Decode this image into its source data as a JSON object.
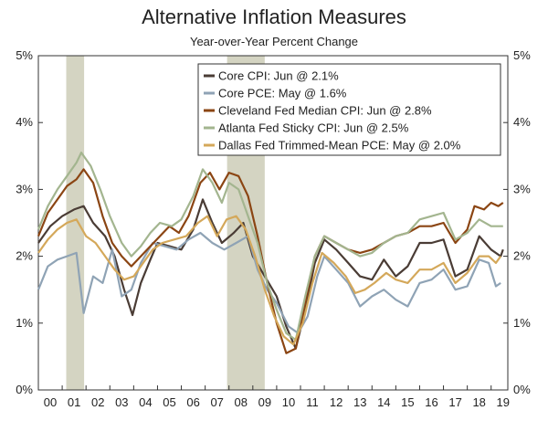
{
  "chart_data": {
    "type": "line",
    "title": "Alternative Inflation Measures",
    "subtitle": "Year-over-Year Percent Change",
    "xlabel": "",
    "ylabel": "",
    "x_range": [
      2000.0,
      2019.7
    ],
    "ylim": [
      0,
      5
    ],
    "x_tick_labels": [
      "00",
      "01",
      "02",
      "03",
      "04",
      "05",
      "06",
      "07",
      "08",
      "09",
      "10",
      "11",
      "12",
      "13",
      "14",
      "15",
      "16",
      "17",
      "18",
      "19"
    ],
    "y_tick_labels": [
      "0%",
      "1%",
      "2%",
      "3%",
      "4%",
      "5%"
    ],
    "grid": false,
    "legend_position": "top-right",
    "recessions": [
      [
        2001.17,
        2001.92
      ],
      [
        2007.92,
        2009.5
      ]
    ],
    "series": [
      {
        "name": "Core CPI: Jun @ 2.1%",
        "color": "#4a3c35",
        "points": [
          [
            2000.0,
            2.2
          ],
          [
            2000.5,
            2.45
          ],
          [
            2001.0,
            2.6
          ],
          [
            2001.5,
            2.7
          ],
          [
            2001.9,
            2.75
          ],
          [
            2002.3,
            2.5
          ],
          [
            2002.8,
            2.3
          ],
          [
            2003.2,
            2.0
          ],
          [
            2003.6,
            1.5
          ],
          [
            2003.95,
            1.12
          ],
          [
            2004.3,
            1.6
          ],
          [
            2004.7,
            1.95
          ],
          [
            2005.0,
            2.2
          ],
          [
            2005.5,
            2.15
          ],
          [
            2006.0,
            2.1
          ],
          [
            2006.5,
            2.4
          ],
          [
            2006.9,
            2.85
          ],
          [
            2007.3,
            2.5
          ],
          [
            2007.7,
            2.2
          ],
          [
            2008.2,
            2.35
          ],
          [
            2008.6,
            2.5
          ],
          [
            2009.0,
            2.0
          ],
          [
            2009.5,
            1.7
          ],
          [
            2010.0,
            1.4
          ],
          [
            2010.4,
            0.95
          ],
          [
            2010.8,
            0.62
          ],
          [
            2011.2,
            1.2
          ],
          [
            2011.6,
            1.9
          ],
          [
            2012.0,
            2.25
          ],
          [
            2012.5,
            2.1
          ],
          [
            2013.0,
            1.9
          ],
          [
            2013.5,
            1.7
          ],
          [
            2014.0,
            1.65
          ],
          [
            2014.5,
            1.95
          ],
          [
            2015.0,
            1.7
          ],
          [
            2015.5,
            1.85
          ],
          [
            2016.0,
            2.2
          ],
          [
            2016.5,
            2.2
          ],
          [
            2017.0,
            2.25
          ],
          [
            2017.5,
            1.7
          ],
          [
            2018.0,
            1.8
          ],
          [
            2018.5,
            2.3
          ],
          [
            2019.0,
            2.1
          ],
          [
            2019.4,
            2.0
          ],
          [
            2019.5,
            2.1
          ]
        ]
      },
      {
        "name": "Core PCE: May @ 1.6%",
        "color": "#8fa3b5",
        "points": [
          [
            2000.0,
            1.5
          ],
          [
            2000.4,
            1.85
          ],
          [
            2000.8,
            1.95
          ],
          [
            2001.2,
            2.0
          ],
          [
            2001.6,
            2.05
          ],
          [
            2001.9,
            1.15
          ],
          [
            2002.3,
            1.7
          ],
          [
            2002.7,
            1.6
          ],
          [
            2003.1,
            2.1
          ],
          [
            2003.5,
            1.4
          ],
          [
            2003.9,
            1.5
          ],
          [
            2004.3,
            1.9
          ],
          [
            2004.8,
            2.2
          ],
          [
            2005.3,
            2.15
          ],
          [
            2005.8,
            2.1
          ],
          [
            2006.3,
            2.25
          ],
          [
            2006.8,
            2.35
          ],
          [
            2007.3,
            2.2
          ],
          [
            2007.8,
            2.1
          ],
          [
            2008.3,
            2.2
          ],
          [
            2008.8,
            2.3
          ],
          [
            2009.2,
            1.8
          ],
          [
            2009.6,
            1.5
          ],
          [
            2010.0,
            1.3
          ],
          [
            2010.5,
            0.95
          ],
          [
            2010.9,
            0.85
          ],
          [
            2011.3,
            1.1
          ],
          [
            2011.7,
            1.7
          ],
          [
            2012.0,
            2.0
          ],
          [
            2012.5,
            1.8
          ],
          [
            2013.0,
            1.6
          ],
          [
            2013.5,
            1.25
          ],
          [
            2014.0,
            1.4
          ],
          [
            2014.5,
            1.5
          ],
          [
            2015.0,
            1.35
          ],
          [
            2015.5,
            1.25
          ],
          [
            2016.0,
            1.6
          ],
          [
            2016.5,
            1.65
          ],
          [
            2017.0,
            1.8
          ],
          [
            2017.5,
            1.5
          ],
          [
            2018.0,
            1.55
          ],
          [
            2018.5,
            1.95
          ],
          [
            2018.9,
            1.9
          ],
          [
            2019.2,
            1.55
          ],
          [
            2019.4,
            1.6
          ]
        ]
      },
      {
        "name": "Cleveland Fed Median CPI: Jun @ 2.8%",
        "color": "#8b4513",
        "points": [
          [
            2000.0,
            2.3
          ],
          [
            2000.4,
            2.65
          ],
          [
            2000.8,
            2.85
          ],
          [
            2001.2,
            3.05
          ],
          [
            2001.6,
            3.15
          ],
          [
            2001.9,
            3.3
          ],
          [
            2002.3,
            3.1
          ],
          [
            2002.7,
            2.6
          ],
          [
            2003.1,
            2.2
          ],
          [
            2003.5,
            2.0
          ],
          [
            2003.9,
            1.85
          ],
          [
            2004.3,
            2.0
          ],
          [
            2004.7,
            2.15
          ],
          [
            2005.1,
            2.3
          ],
          [
            2005.5,
            2.45
          ],
          [
            2005.9,
            2.35
          ],
          [
            2006.3,
            2.6
          ],
          [
            2006.8,
            3.1
          ],
          [
            2007.2,
            3.25
          ],
          [
            2007.6,
            3.0
          ],
          [
            2008.0,
            3.25
          ],
          [
            2008.4,
            3.2
          ],
          [
            2008.8,
            2.9
          ],
          [
            2009.2,
            2.3
          ],
          [
            2009.6,
            1.6
          ],
          [
            2010.0,
            1.0
          ],
          [
            2010.4,
            0.55
          ],
          [
            2010.8,
            0.62
          ],
          [
            2011.2,
            1.3
          ],
          [
            2011.6,
            2.0
          ],
          [
            2012.0,
            2.3
          ],
          [
            2012.5,
            2.2
          ],
          [
            2013.0,
            2.1
          ],
          [
            2013.5,
            2.05
          ],
          [
            2014.0,
            2.1
          ],
          [
            2014.5,
            2.2
          ],
          [
            2015.0,
            2.3
          ],
          [
            2015.5,
            2.35
          ],
          [
            2016.0,
            2.45
          ],
          [
            2016.5,
            2.45
          ],
          [
            2017.0,
            2.5
          ],
          [
            2017.5,
            2.2
          ],
          [
            2018.0,
            2.4
          ],
          [
            2018.3,
            2.75
          ],
          [
            2018.7,
            2.7
          ],
          [
            2019.0,
            2.8
          ],
          [
            2019.3,
            2.75
          ],
          [
            2019.5,
            2.8
          ]
        ]
      },
      {
        "name": "Atlanta Fed Sticky CPI: Jun @ 2.5%",
        "color": "#a3b58f",
        "points": [
          [
            2000.0,
            2.4
          ],
          [
            2000.4,
            2.75
          ],
          [
            2000.8,
            3.0
          ],
          [
            2001.2,
            3.2
          ],
          [
            2001.6,
            3.4
          ],
          [
            2001.8,
            3.55
          ],
          [
            2002.2,
            3.35
          ],
          [
            2002.6,
            3.0
          ],
          [
            2003.0,
            2.6
          ],
          [
            2003.5,
            2.2
          ],
          [
            2003.9,
            2.0
          ],
          [
            2004.3,
            2.15
          ],
          [
            2004.7,
            2.35
          ],
          [
            2005.1,
            2.5
          ],
          [
            2005.6,
            2.45
          ],
          [
            2006.0,
            2.55
          ],
          [
            2006.5,
            2.9
          ],
          [
            2006.9,
            3.3
          ],
          [
            2007.3,
            3.1
          ],
          [
            2007.7,
            2.8
          ],
          [
            2008.0,
            3.1
          ],
          [
            2008.4,
            3.0
          ],
          [
            2008.8,
            2.6
          ],
          [
            2009.2,
            2.2
          ],
          [
            2009.6,
            1.6
          ],
          [
            2010.0,
            1.2
          ],
          [
            2010.4,
            0.85
          ],
          [
            2010.8,
            0.75
          ],
          [
            2011.2,
            1.4
          ],
          [
            2011.6,
            2.0
          ],
          [
            2012.0,
            2.3
          ],
          [
            2012.5,
            2.2
          ],
          [
            2013.0,
            2.1
          ],
          [
            2013.5,
            2.0
          ],
          [
            2014.0,
            2.05
          ],
          [
            2014.5,
            2.2
          ],
          [
            2015.0,
            2.3
          ],
          [
            2015.5,
            2.35
          ],
          [
            2016.0,
            2.55
          ],
          [
            2016.5,
            2.6
          ],
          [
            2017.0,
            2.65
          ],
          [
            2017.5,
            2.25
          ],
          [
            2018.0,
            2.35
          ],
          [
            2018.5,
            2.55
          ],
          [
            2019.0,
            2.45
          ],
          [
            2019.5,
            2.45
          ]
        ]
      },
      {
        "name": "Dallas Fed Trimmed-Mean PCE: May @ 2.0%",
        "color": "#d4a85a",
        "points": [
          [
            2000.0,
            2.05
          ],
          [
            2000.4,
            2.25
          ],
          [
            2000.8,
            2.4
          ],
          [
            2001.2,
            2.5
          ],
          [
            2001.6,
            2.55
          ],
          [
            2002.0,
            2.3
          ],
          [
            2002.4,
            2.2
          ],
          [
            2002.8,
            2.0
          ],
          [
            2003.2,
            1.8
          ],
          [
            2003.6,
            1.65
          ],
          [
            2004.0,
            1.7
          ],
          [
            2004.4,
            1.9
          ],
          [
            2004.8,
            2.1
          ],
          [
            2005.2,
            2.2
          ],
          [
            2005.7,
            2.25
          ],
          [
            2006.2,
            2.3
          ],
          [
            2006.7,
            2.5
          ],
          [
            2007.1,
            2.6
          ],
          [
            2007.5,
            2.3
          ],
          [
            2007.9,
            2.55
          ],
          [
            2008.3,
            2.6
          ],
          [
            2008.7,
            2.4
          ],
          [
            2009.1,
            2.0
          ],
          [
            2009.5,
            1.5
          ],
          [
            2009.9,
            1.1
          ],
          [
            2010.3,
            0.8
          ],
          [
            2010.7,
            0.68
          ],
          [
            2011.1,
            1.0
          ],
          [
            2011.5,
            1.6
          ],
          [
            2011.9,
            2.05
          ],
          [
            2012.4,
            1.9
          ],
          [
            2012.9,
            1.7
          ],
          [
            2013.3,
            1.45
          ],
          [
            2013.7,
            1.5
          ],
          [
            2014.1,
            1.6
          ],
          [
            2014.6,
            1.75
          ],
          [
            2015.0,
            1.65
          ],
          [
            2015.5,
            1.6
          ],
          [
            2016.0,
            1.8
          ],
          [
            2016.5,
            1.8
          ],
          [
            2017.0,
            1.9
          ],
          [
            2017.5,
            1.6
          ],
          [
            2018.0,
            1.75
          ],
          [
            2018.5,
            2.0
          ],
          [
            2018.9,
            2.0
          ],
          [
            2019.2,
            1.9
          ],
          [
            2019.4,
            2.0
          ]
        ]
      }
    ]
  }
}
